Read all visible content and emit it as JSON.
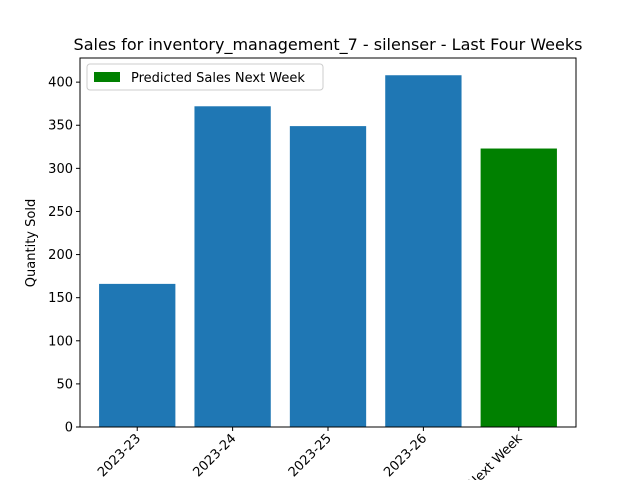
{
  "chart_data": {
    "type": "bar",
    "title": "Sales for inventory_management_7 - silenser - Last Four Weeks",
    "xlabel": "",
    "ylabel": "Quantity Sold",
    "categories": [
      "2023-23",
      "2023-24",
      "2023-25",
      "2023-26",
      "Next Week"
    ],
    "values": [
      166,
      372,
      349,
      408,
      323
    ],
    "bar_colors": [
      "#1f77b4",
      "#1f77b4",
      "#1f77b4",
      "#1f77b4",
      "#008000"
    ],
    "ylim": [
      0,
      428
    ],
    "yticks": [
      0,
      50,
      100,
      150,
      200,
      250,
      300,
      350,
      400
    ],
    "grid": false,
    "legend": {
      "placement": "top-left",
      "entries": [
        {
          "label": "Predicted Sales Next Week",
          "color": "#008000"
        }
      ]
    }
  }
}
